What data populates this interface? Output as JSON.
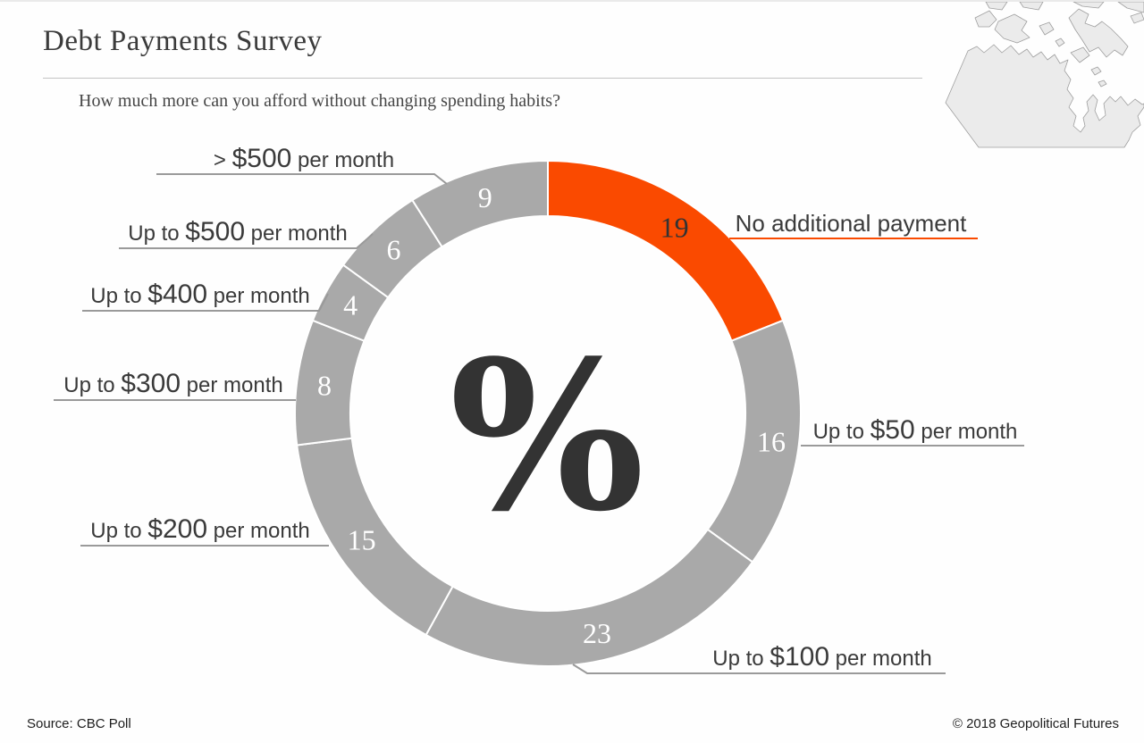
{
  "header": {
    "title": "Debt Payments Survey",
    "subtitle": "How much more can you afford without changing spending habits?"
  },
  "footer": {
    "source": "Source: CBC Poll",
    "copyright": "© 2018 Geopolitical Futures"
  },
  "colors": {
    "accent_orange": "#fa4a00",
    "ring_gray": "#a9a9a9",
    "text_dark": "#3a3a3a",
    "underline_gray": "#9a9a9a"
  },
  "center_symbol": "%",
  "map": {
    "name": "canada-outline-map"
  },
  "chart_data": {
    "type": "pie",
    "subtype": "donut",
    "title": "Debt Payments Survey",
    "question": "How much more can you afford without changing spending habits?",
    "unit": "percent",
    "start_angle_deg": 0,
    "direction": "clockwise",
    "total": 100,
    "segments": [
      {
        "label": "No additional payment",
        "value": 19,
        "color": "#fa4a00",
        "value_color": "#333333"
      },
      {
        "label": "Up to $50 per month",
        "value": 16,
        "color": "#a9a9a9",
        "value_color": "#ffffff"
      },
      {
        "label": "Up to $100 per month",
        "value": 23,
        "color": "#a9a9a9",
        "value_color": "#ffffff"
      },
      {
        "label": "Up to $200 per month",
        "value": 15,
        "color": "#a9a9a9",
        "value_color": "#ffffff"
      },
      {
        "label": "Up to $300 per month",
        "value": 8,
        "color": "#a9a9a9",
        "value_color": "#ffffff"
      },
      {
        "label": "Up to $400 per month",
        "value": 4,
        "color": "#a9a9a9",
        "value_color": "#ffffff"
      },
      {
        "label": "Up to $500 per month",
        "value": 6,
        "color": "#a9a9a9",
        "value_color": "#ffffff"
      },
      {
        "label": "> $500 per month",
        "value": 9,
        "color": "#a9a9a9",
        "value_color": "#ffffff"
      }
    ]
  },
  "callouts": {
    "gt500": {
      "pre": "> ",
      "amount": "$500",
      "post": " per month"
    },
    "up500": {
      "pre": "Up to ",
      "amount": "$500",
      "post": " per month"
    },
    "up400": {
      "pre": "Up to ",
      "amount": "$400",
      "post": " per month"
    },
    "up300": {
      "pre": "Up to ",
      "amount": "$300",
      "post": " per month"
    },
    "up200": {
      "pre": "Up to ",
      "amount": "$200",
      "post": " per month"
    },
    "up100": {
      "pre": "Up to ",
      "amount": "$100",
      "post": " per month"
    },
    "up50": {
      "pre": "Up to ",
      "amount": "$50",
      "post": " per month"
    },
    "none": {
      "text": "No additional payment"
    }
  }
}
